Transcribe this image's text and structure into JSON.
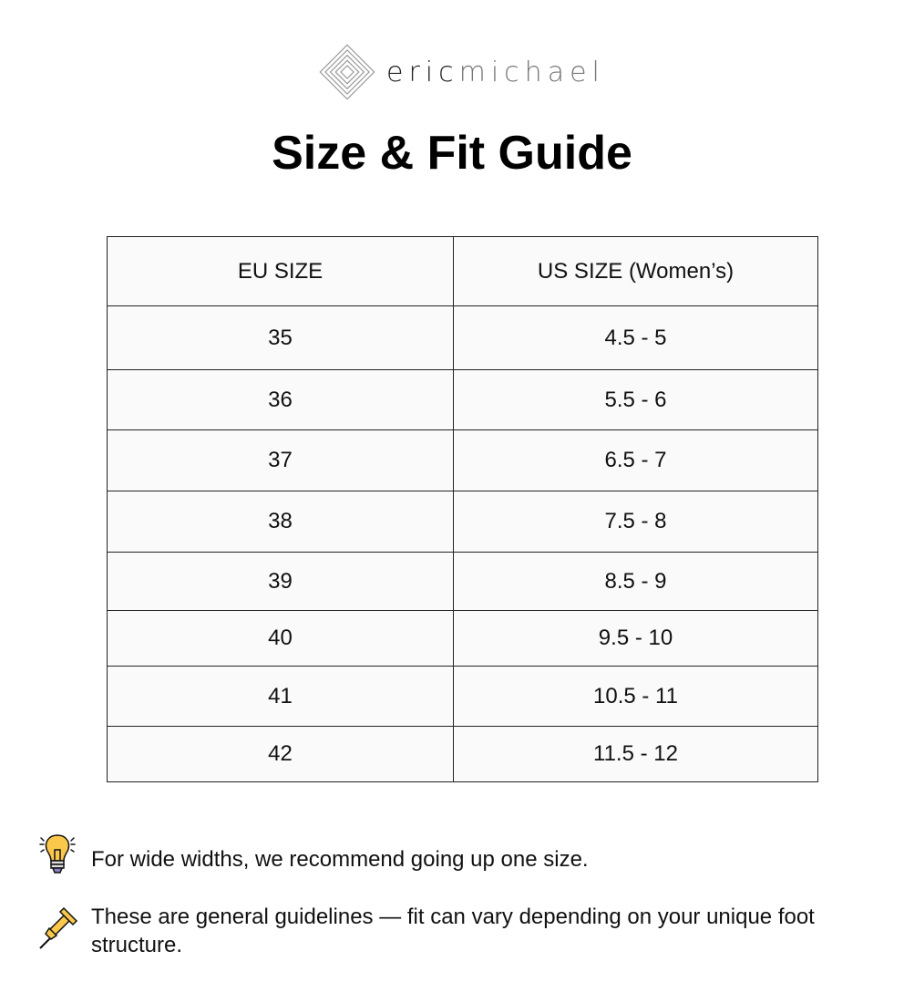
{
  "brand": {
    "part1": "eric",
    "part2": "michael"
  },
  "title": "Size & Fit Guide",
  "table": {
    "headers": [
      "EU SIZE",
      "US SIZE (Women’s)"
    ],
    "rows": [
      [
        "35",
        "4.5 - 5"
      ],
      [
        "36",
        "5.5 - 6"
      ],
      [
        "37",
        "6.5 - 7"
      ],
      [
        "38",
        "7.5 - 8"
      ],
      [
        "39",
        "8.5 - 9"
      ],
      [
        "40",
        "9.5 - 10"
      ],
      [
        "41",
        "10.5 - 11"
      ],
      [
        "42",
        "11.5 - 12"
      ]
    ]
  },
  "notes": [
    {
      "icon": "lightbulb-icon",
      "text": "For wide widths, we recommend going up one size."
    },
    {
      "icon": "pushpin-icon",
      "text": "These are general guidelines — fit can vary depending on your unique foot structure."
    }
  ],
  "colors": {
    "icon_fill": "#FBC84C",
    "table_bg": "#FAFAFA"
  }
}
